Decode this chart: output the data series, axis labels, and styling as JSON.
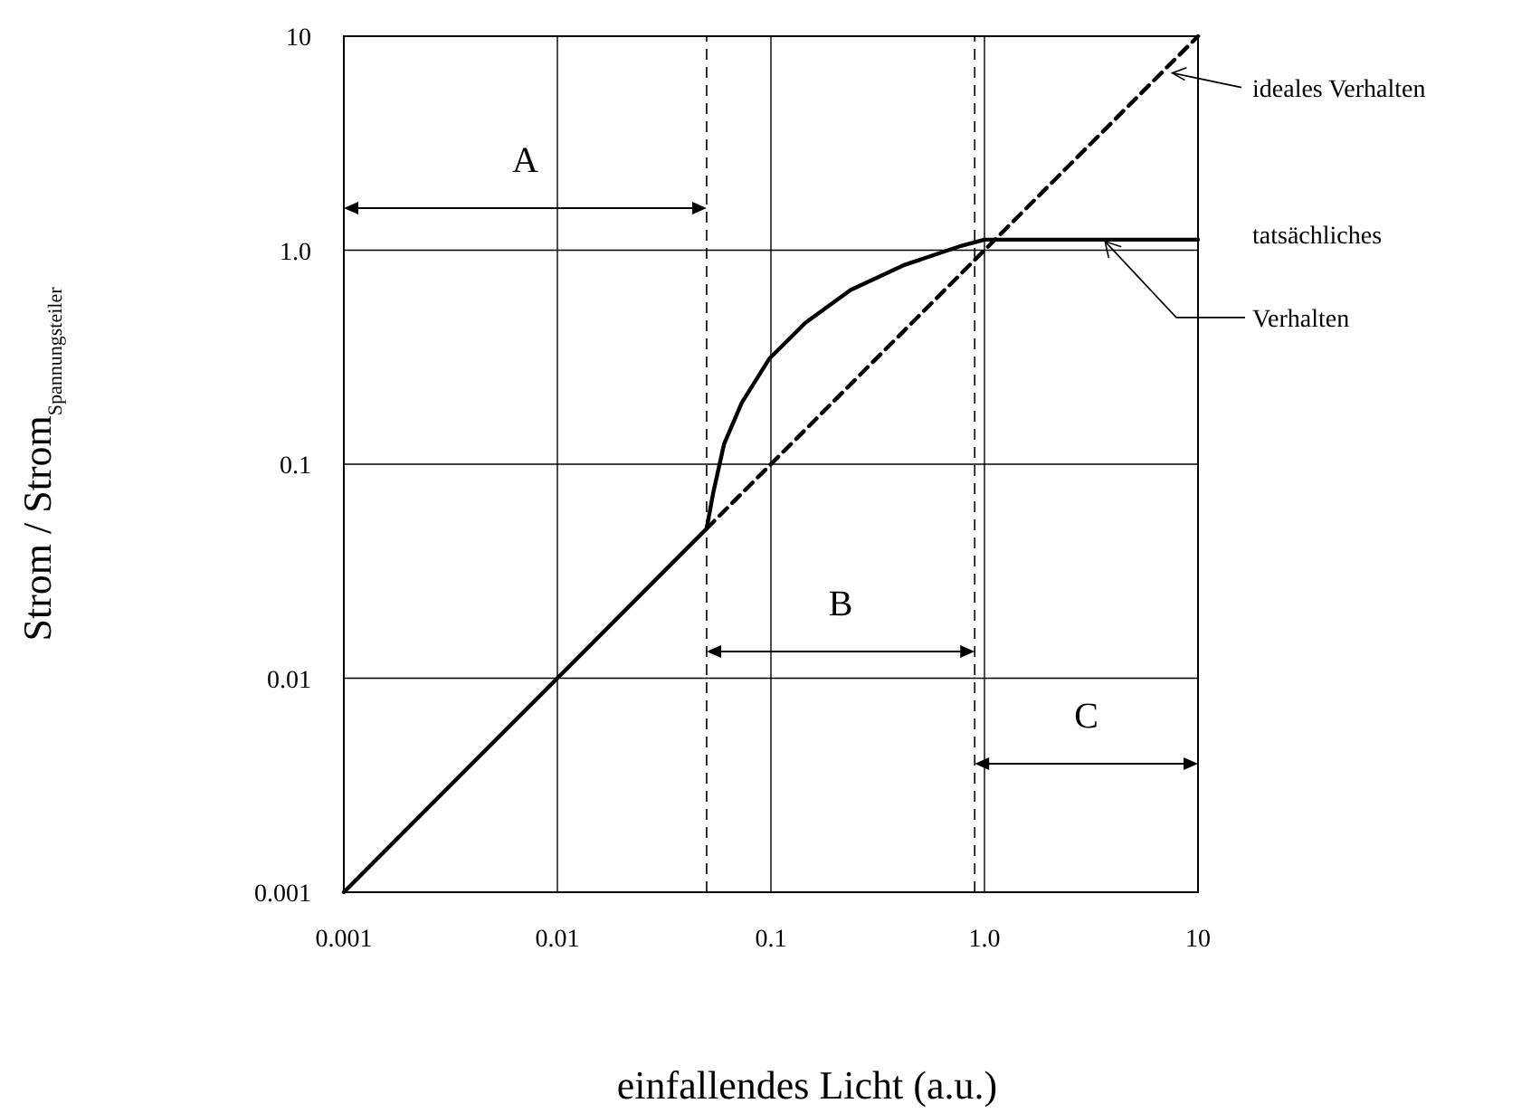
{
  "chart_data": {
    "type": "line",
    "xlabel": "einfallendes Licht (a.u.)",
    "ylabel": "Strom / Strom$_{Spannungsteiler}$",
    "log": "xy",
    "grid": true,
    "xlim": [
      0.001,
      10
    ],
    "ylim": [
      0.001,
      10
    ],
    "xticks": [
      0.001,
      0.01,
      0.1,
      {
        "value": 1,
        "label": "1.0"
      },
      10
    ],
    "yticks": [
      0.001,
      0.01,
      0.1,
      {
        "value": 1,
        "label": "1.0"
      },
      10
    ],
    "series": [
      {
        "color": "#000000",
        "line_style": "solid",
        "x": [
          0.001,
          0.05,
          0.0536,
          0.0603,
          0.0731,
          0.098,
          0.145,
          0.236,
          0.424,
          0.76,
          1,
          10
        ],
        "values": [
          0.001,
          0.05,
          0.073,
          0.124,
          0.194,
          0.31,
          0.458,
          0.652,
          0.855,
          1.04,
          1.12,
          1.12
        ]
      },
      {
        "color": "#000000",
        "line_style": "dashed",
        "x": [
          0.05,
          10
        ],
        "values": [
          0.05,
          10
        ]
      }
    ],
    "ref_lines": [
      {
        "axis": "x",
        "value": 0.05,
        "line_style": "dashed",
        "color": "#000000"
      },
      {
        "axis": "x",
        "value": 0.9,
        "line_style": "dashed",
        "color": "#000000"
      }
    ],
    "annotations": [
      "A",
      "B",
      "C",
      {
        "text": "ideales Verhalten",
        "x": 7,
        "y": 7
      },
      "tatsächliches",
      {
        "text": "Verhalten",
        "x": 3.6,
        "y": 1.12
      }
    ]
  }
}
